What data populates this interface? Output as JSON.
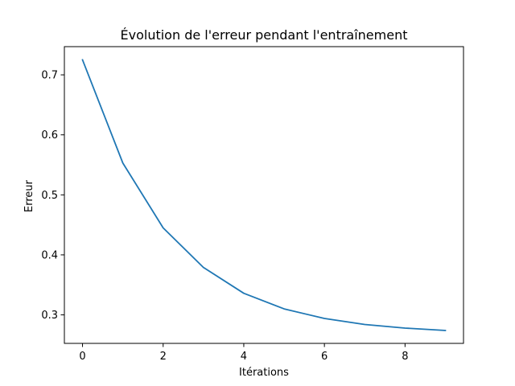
{
  "chart_data": {
    "type": "line",
    "title": "Évolution de l'erreur pendant l'entraînement",
    "xlabel": "Itérations",
    "ylabel": "Erreur",
    "xlim": [
      -0.45,
      9.45
    ],
    "ylim": [
      0.2525,
      0.747
    ],
    "xticks": [
      0,
      2,
      4,
      6,
      8
    ],
    "yticks": [
      0.3,
      0.4,
      0.5,
      0.6,
      0.7
    ],
    "grid": false,
    "series": [
      {
        "color": "#1f77b4",
        "x": [
          0,
          1,
          2,
          3,
          4,
          5,
          6,
          7,
          8,
          9
        ],
        "y": [
          0.725,
          0.553,
          0.445,
          0.379,
          0.336,
          0.31,
          0.294,
          0.284,
          0.278,
          0.274
        ]
      }
    ]
  }
}
